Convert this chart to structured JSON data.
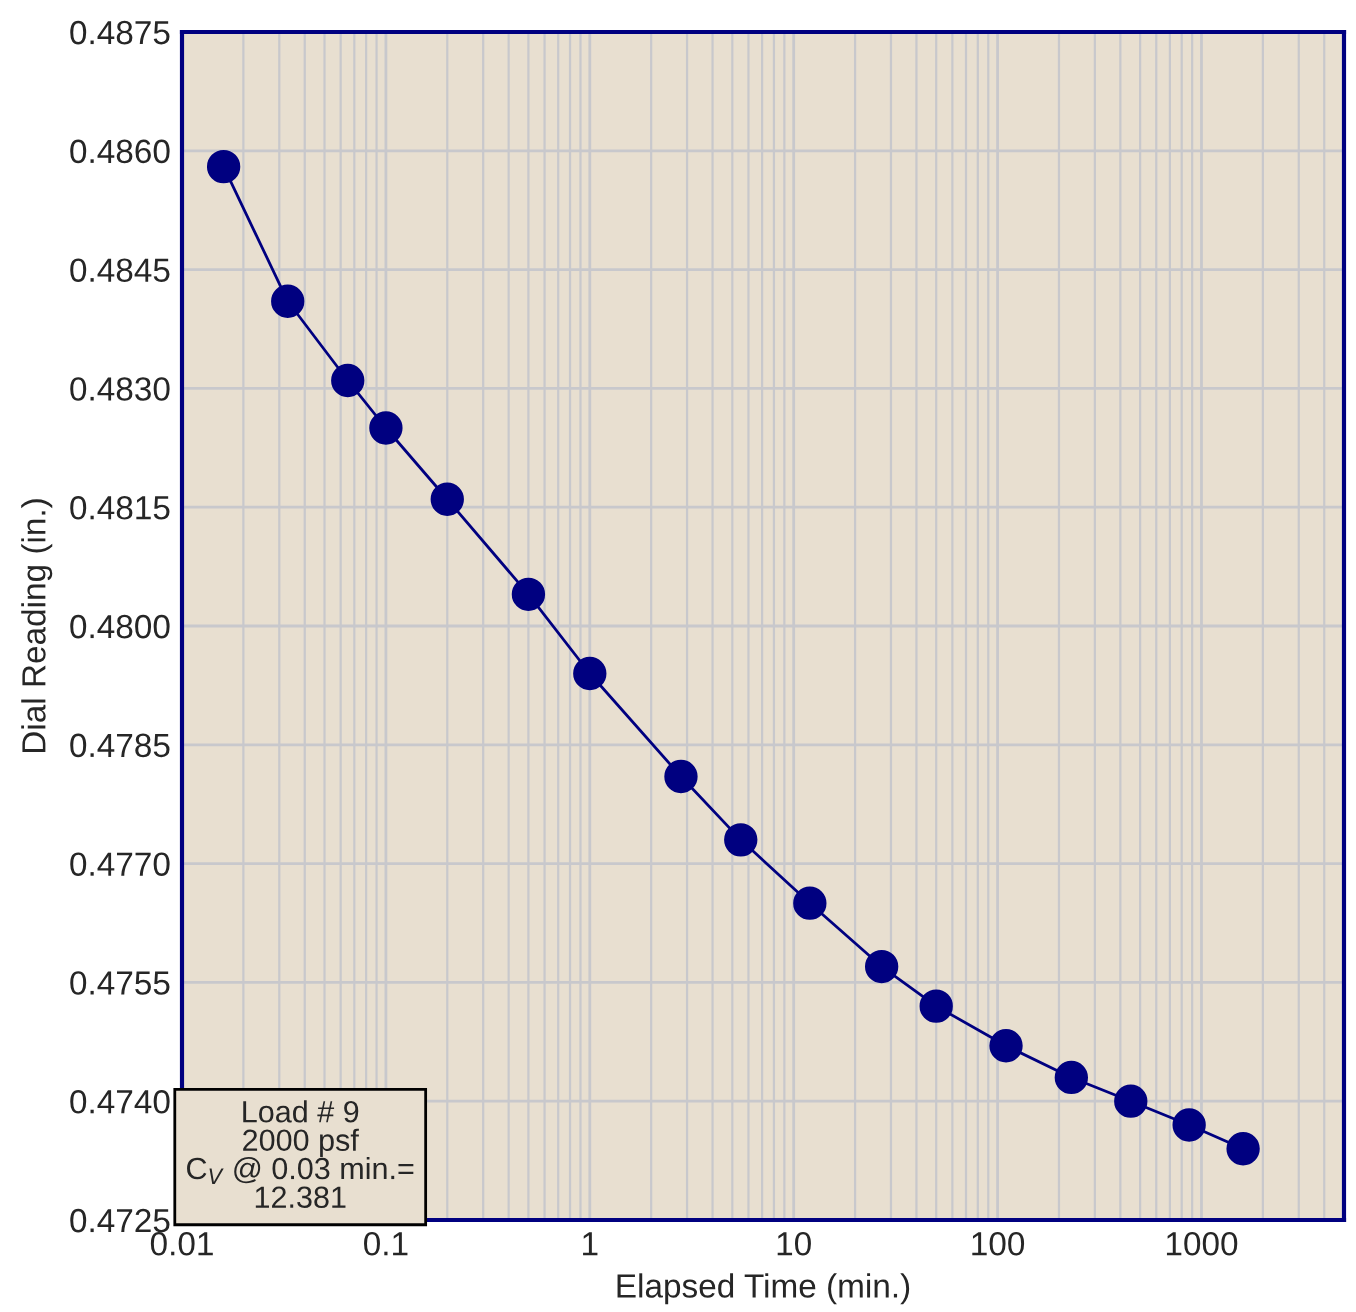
{
  "chart_data": {
    "type": "line",
    "xlabel": "Elapsed Time (min.)",
    "ylabel": "Dial Reading (in.)",
    "x": [
      0.016,
      0.033,
      0.065,
      0.1,
      0.2,
      0.5,
      1,
      2.8,
      5.5,
      12,
      27,
      50,
      110,
      230,
      450,
      870,
      1600
    ],
    "series": [
      {
        "color": "#000080",
        "values": [
          0.4858,
          0.4841,
          0.4831,
          0.4825,
          0.4816,
          0.4804,
          0.4794,
          0.4781,
          0.4773,
          0.4765,
          0.4757,
          0.4752,
          0.4747,
          0.4743,
          0.474,
          0.4737,
          0.4734
        ]
      }
    ],
    "log": "x",
    "xlim": [
      0.01,
      5000
    ],
    "xticks": [
      0.01,
      0.1,
      1,
      10,
      100,
      1000
    ],
    "ylim": [
      0.4725,
      0.4875
    ],
    "yticks": [
      0.4725,
      {
        "value": 0.474,
        "label": "0.4740"
      },
      0.4755,
      {
        "value": 0.477,
        "label": "0.4770"
      },
      0.4785,
      {
        "value": 0.48,
        "label": "0.4800"
      },
      0.4815,
      {
        "value": 0.483,
        "label": "0.4830"
      },
      0.4845,
      {
        "value": 0.486,
        "label": "0.4860"
      },
      0.4875
    ],
    "grid": true,
    "marker": "circle",
    "line_style": "solid",
    "legend": false,
    "annotations": [
      "Load # 9\n2000 psf\nC$_{V}$ @ 0.03 min.=\n12.381"
    ]
  }
}
